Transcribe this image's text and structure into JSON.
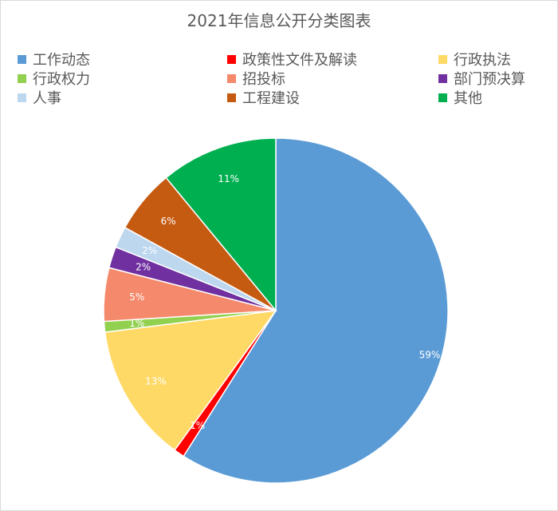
{
  "chart_data": {
    "type": "pie",
    "title": "2021年信息公开分类图表",
    "legend_position": "top",
    "slices": [
      {
        "label": "工作动态",
        "value": 59,
        "value_label": "59%",
        "color": "#5B9BD5"
      },
      {
        "label": "政策性文件及解读",
        "value": 1,
        "value_label": "1%",
        "color": "#FF0000"
      },
      {
        "label": "行政执法",
        "value": 13,
        "value_label": "13%",
        "color": "#FFD966"
      },
      {
        "label": "行政权力",
        "value": 1,
        "value_label": "1%",
        "color": "#92D050"
      },
      {
        "label": "招投标",
        "value": 5,
        "value_label": "5%",
        "color": "#F4896B"
      },
      {
        "label": "部门预决算",
        "value": 2,
        "value_label": "2%",
        "color": "#7030A0"
      },
      {
        "label": "人事",
        "value": 2,
        "value_label": "2%",
        "color": "#BDD7EE"
      },
      {
        "label": "工程建设",
        "value": 6,
        "value_label": "6%",
        "color": "#C55A11"
      },
      {
        "label": "其他",
        "value": 11,
        "value_label": "11%",
        "color": "#00B050"
      }
    ]
  }
}
